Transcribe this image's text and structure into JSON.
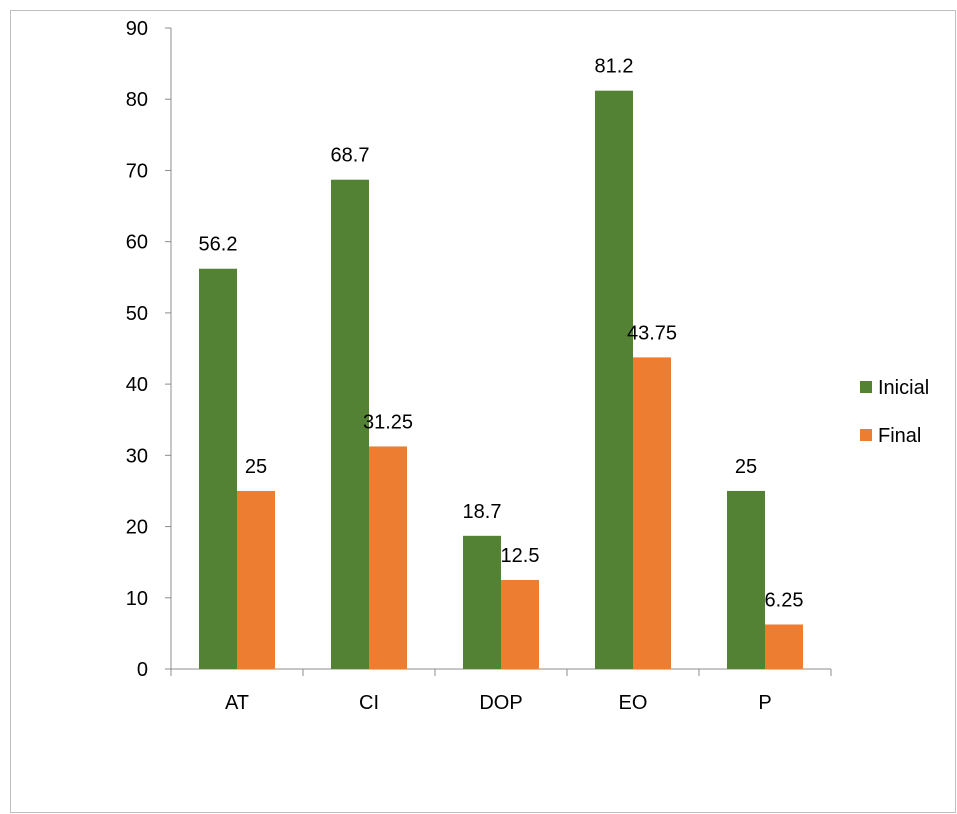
{
  "chart_data": {
    "type": "bar",
    "title": "",
    "xlabel": "",
    "ylabel": "",
    "categories": [
      "AT",
      "CI",
      "DOP",
      "EO",
      "P"
    ],
    "series": [
      {
        "name": "Inicial",
        "color": "#548235",
        "values": [
          56.2,
          68.7,
          18.7,
          81.2,
          25
        ],
        "labels": [
          "56.2",
          "68.7",
          "18.7",
          "81.2",
          "25"
        ]
      },
      {
        "name": "Final",
        "color": "#ED7D31",
        "values": [
          25,
          31.25,
          12.5,
          43.75,
          6.25
        ],
        "labels": [
          "25",
          "31.25",
          "12.5",
          "43.75",
          "6.25"
        ]
      }
    ],
    "ylim": [
      0,
      90
    ],
    "yticks": [
      "0",
      "10",
      "20",
      "30",
      "40",
      "50",
      "60",
      "70",
      "80",
      "90"
    ],
    "grid": false,
    "legend": "right"
  }
}
